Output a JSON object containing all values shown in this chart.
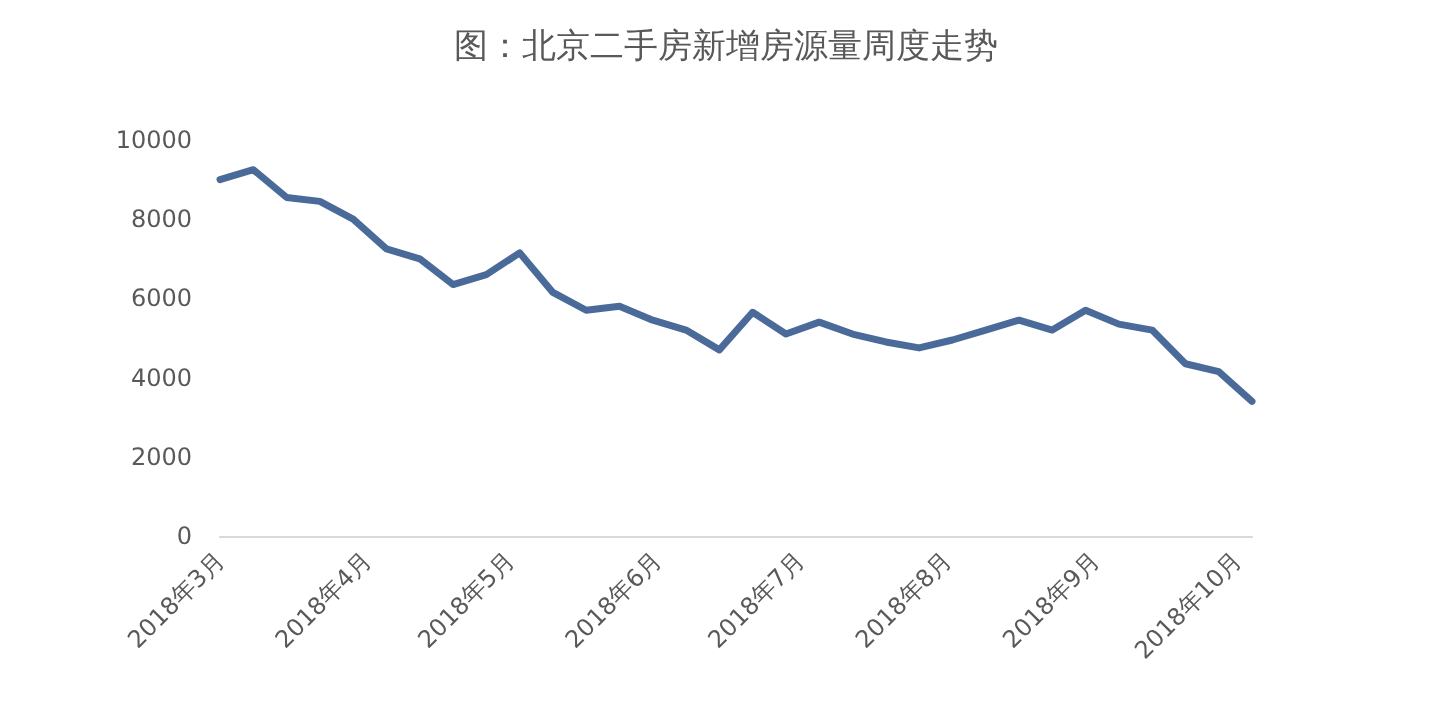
{
  "chart_data": {
    "type": "line",
    "title": "图：北京二手房新增房源量周度走势",
    "x": [
      "2018-03-01",
      "2018-03-08",
      "2018-03-15",
      "2018-03-22",
      "2018-03-29",
      "2018-04-05",
      "2018-04-12",
      "2018-04-19",
      "2018-04-26",
      "2018-05-03",
      "2018-05-10",
      "2018-05-17",
      "2018-05-24",
      "2018-05-31",
      "2018-06-07",
      "2018-06-14",
      "2018-06-21",
      "2018-06-28",
      "2018-07-05",
      "2018-07-12",
      "2018-07-19",
      "2018-07-26",
      "2018-08-02",
      "2018-08-09",
      "2018-08-16",
      "2018-08-23",
      "2018-08-30",
      "2018-09-06",
      "2018-09-13",
      "2018-09-20",
      "2018-09-27",
      "2018-10-04"
    ],
    "series": [
      {
        "color": "#4a6b99",
        "values": [
          9000,
          9250,
          8550,
          8450,
          8000,
          7250,
          7000,
          6350,
          6600,
          7150,
          6150,
          5700,
          5800,
          5450,
          5200,
          4700,
          5650,
          5100,
          5400,
          5100,
          4900,
          4750,
          4950,
          5200,
          5450,
          5200,
          5700,
          5350,
          5200,
          4350,
          4150,
          3400
        ]
      }
    ],
    "xlim": [
      "2018-03-01",
      "2018-10-04"
    ],
    "xticks": [
      {
        "value": "2018-03-01",
        "label": "2018年3月"
      },
      {
        "value": "2018-04-01",
        "label": "2018年4月"
      },
      {
        "value": "2018-05-01",
        "label": "2018年5月"
      },
      {
        "value": "2018-06-01",
        "label": "2018年6月"
      },
      {
        "value": "2018-07-01",
        "label": "2018年7月"
      },
      {
        "value": "2018-08-01",
        "label": "2018年8月"
      },
      {
        "value": "2018-09-01",
        "label": "2018年9月"
      },
      {
        "value": "2018-10-01",
        "label": "2018年10月"
      }
    ],
    "ylim": [
      0,
      10000
    ],
    "yticks": [
      0,
      2000,
      4000,
      6000,
      8000,
      10000
    ],
    "grid": false,
    "marker": "none",
    "line_style": "solid"
  }
}
